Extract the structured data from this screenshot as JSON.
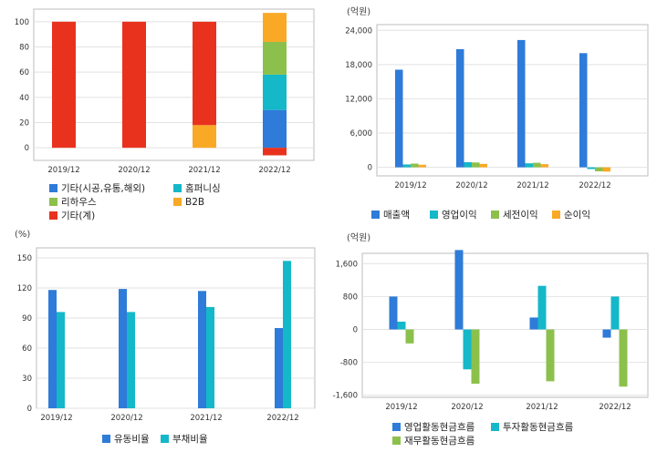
{
  "colors": {
    "blue": "#2e7bd9",
    "teal": "#14b8c8",
    "green": "#8cc04c",
    "orange": "#f9a926",
    "red": "#e8321e",
    "grid": "#e2e2e2",
    "frame": "#bdbdbd"
  },
  "chart_data": [
    {
      "type": "bar",
      "stacked": true,
      "unit": "",
      "categories": [
        "2019/12",
        "2020/12",
        "2021/12",
        "2022/12"
      ],
      "ylim": [
        -10,
        110
      ],
      "yticks": [
        0,
        20,
        40,
        60,
        80,
        100
      ],
      "yticks_label": [
        "0",
        "20",
        "40",
        "60",
        "80",
        "100"
      ],
      "grid": true,
      "legend_position": "bottom",
      "series": [
        {
          "name": "기타(시공,유통,해외)",
          "color": "#2e7bd9",
          "values": [
            0,
            0,
            0,
            30
          ]
        },
        {
          "name": "홈퍼니싱",
          "color": "#14b8c8",
          "values": [
            0,
            0,
            0,
            28
          ]
        },
        {
          "name": "리하우스",
          "color": "#8cc04c",
          "values": [
            0,
            0,
            0,
            26
          ]
        },
        {
          "name": "B2B",
          "color": "#f9a926",
          "values": [
            0,
            0,
            18,
            23
          ]
        },
        {
          "name": "기타(계)",
          "color": "#e8321e",
          "values": [
            100,
            100,
            82,
            -6
          ]
        }
      ]
    },
    {
      "type": "bar",
      "unit": "(억원)",
      "categories": [
        "2019/12",
        "2020/12",
        "2021/12",
        "2022/12"
      ],
      "ylim": [
        -1500,
        25000
      ],
      "yticks": [
        0,
        6000,
        12000,
        18000,
        24000
      ],
      "yticks_label": [
        "0",
        "6,000",
        "12,000",
        "18,000",
        "24,000"
      ],
      "grid": true,
      "legend_position": "bottom",
      "series": [
        {
          "name": "매출액",
          "color": "#2e7bd9",
          "values": [
            17100,
            20700,
            22300,
            20000
          ]
        },
        {
          "name": "영업이익",
          "color": "#14b8c8",
          "values": [
            500,
            900,
            700,
            -300
          ]
        },
        {
          "name": "세전이익",
          "color": "#8cc04c",
          "values": [
            650,
            850,
            800,
            -700
          ]
        },
        {
          "name": "순이익",
          "color": "#f9a926",
          "values": [
            450,
            600,
            550,
            -750
          ]
        }
      ]
    },
    {
      "type": "bar",
      "unit": "(%)",
      "categories": [
        "2019/12",
        "2020/12",
        "2021/12",
        "2022/12"
      ],
      "ylim": [
        0,
        160
      ],
      "yticks": [
        0,
        30,
        60,
        90,
        120,
        150
      ],
      "yticks_label": [
        "0",
        "30",
        "60",
        "90",
        "120",
        "150"
      ],
      "grid": true,
      "legend_position": "bottom",
      "series": [
        {
          "name": "유동비율",
          "color": "#2e7bd9",
          "values": [
            118,
            119,
            117,
            80
          ]
        },
        {
          "name": "부채비율",
          "color": "#14b8c8",
          "values": [
            96,
            96,
            101,
            147
          ]
        }
      ]
    },
    {
      "type": "bar",
      "unit": "(억원)",
      "categories": [
        "2019/12",
        "2020/12",
        "2021/12",
        "2022/12"
      ],
      "ylim": [
        -1650,
        1850
      ],
      "yticks": [
        -1600,
        -800,
        0,
        800,
        1600
      ],
      "yticks_label": [
        "-1,600",
        "-800",
        "0",
        "800",
        "1,600"
      ],
      "grid": true,
      "legend_position": "bottom",
      "series": [
        {
          "name": "영업활동현금흐름",
          "color": "#2e7bd9",
          "values": [
            800,
            1930,
            290,
            -200
          ]
        },
        {
          "name": "투자활동현금흐름",
          "color": "#14b8c8",
          "values": [
            190,
            -970,
            1060,
            800
          ]
        },
        {
          "name": "재무활동현금흐름",
          "color": "#8cc04c",
          "values": [
            -340,
            -1320,
            -1260,
            -1390
          ]
        }
      ]
    }
  ],
  "legends": [
    [
      "기타(시공,유통,해외)",
      "홈퍼니싱",
      "리하우스",
      "B2B",
      "기타(계)"
    ],
    [
      "매출액",
      "영업이익",
      "세전이익",
      "순이익"
    ],
    [
      "유동비율",
      "부채비율"
    ],
    [
      "영업활동현금흐름",
      "투자활동현금흐름",
      "재무활동현금흐름"
    ]
  ]
}
